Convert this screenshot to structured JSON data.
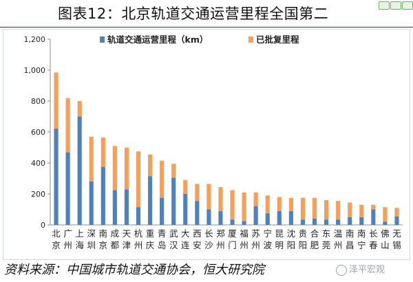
{
  "title": "图表12：北京轨道交通运营里程全国第二",
  "source": "资料来源：中国城市轨道交通协会，恒大研究院",
  "watermark": "泽平宏观",
  "colors": {
    "operating": "#4f81bd",
    "approved": "#f5a05a",
    "title_rule": "#1f3a5f"
  },
  "chart_data": {
    "type": "bar",
    "stacked": true,
    "title": "",
    "xlabel": "",
    "ylabel": "",
    "ylim": [
      0,
      1200
    ],
    "y_ticks": [
      "0",
      "200",
      "400",
      "600",
      "800",
      "1,000",
      "1,200"
    ],
    "grid": false,
    "legend_position": "top",
    "categories": [
      "北京",
      "广州",
      "上海",
      "深圳",
      "南京",
      "成都",
      "天津",
      "杭州",
      "重庆",
      "青岛",
      "武汉",
      "大连",
      "西安",
      "长沙",
      "郑州",
      "厦门",
      "福州",
      "苏州",
      "宁波",
      "昆明",
      "沈阳",
      "贵阳",
      "合肥",
      "东莞",
      "温州",
      "南昌",
      "南宁",
      "长春",
      "佛山",
      "无锡"
    ],
    "series": [
      {
        "name": "轨道交通运营里程（km）",
        "values": [
          622,
          470,
          700,
          280,
          375,
          225,
          230,
          115,
          315,
          175,
          305,
          200,
          155,
          100,
          90,
          35,
          25,
          120,
          75,
          90,
          90,
          35,
          40,
          35,
          35,
          50,
          50,
          100,
          20,
          55
        ]
      },
      {
        "name": "已批复里程",
        "values": [
          363,
          350,
          100,
          290,
          190,
          285,
          270,
          360,
          140,
          240,
          90,
          90,
          110,
          165,
          155,
          190,
          185,
          90,
          115,
          90,
          85,
          140,
          135,
          125,
          120,
          95,
          80,
          30,
          95,
          55
        ]
      }
    ]
  }
}
